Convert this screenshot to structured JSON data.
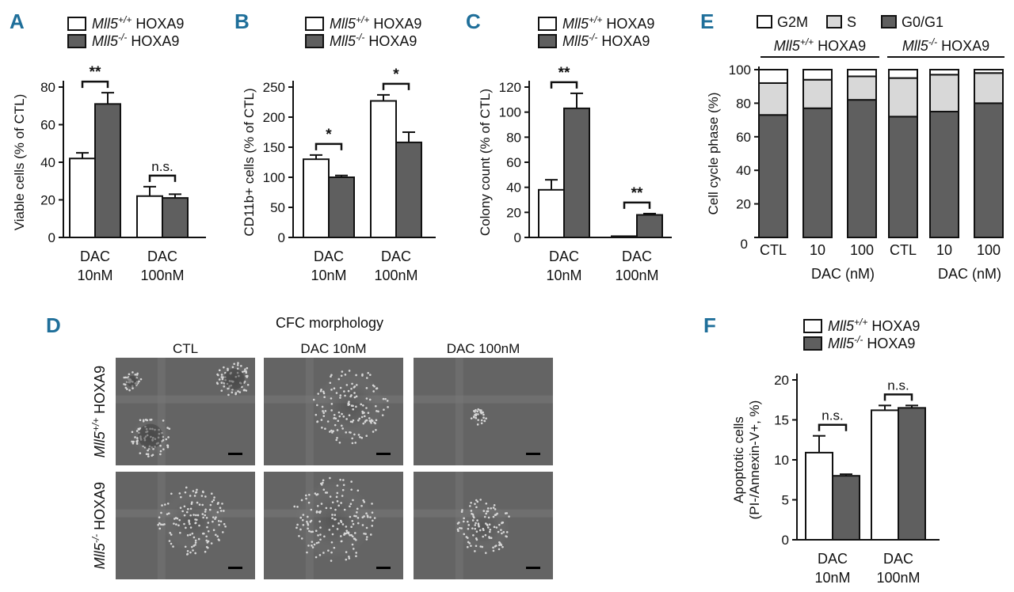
{
  "colors": {
    "panel_letter": "#1f6f9a",
    "wt_fill": "#ffffff",
    "ko_fill": "#5f5f5f",
    "s_fill": "#d8d8d8",
    "g01_fill": "#5f5f5f"
  },
  "legend": {
    "wt_label": "Mll5+/+ HOXA9",
    "ko_label": "Mll5-/- HOXA9"
  },
  "panels": {
    "A": {
      "letter": "A"
    },
    "B": {
      "letter": "B"
    },
    "C": {
      "letter": "C"
    },
    "D": {
      "letter": "D",
      "title": "CFC morphology",
      "columns": [
        "CTL",
        "DAC 10nM",
        "DAC 100nM"
      ],
      "rows": [
        "Mll5+/+ HOXA9",
        "Mll5-/- HOXA9"
      ]
    },
    "E": {
      "letter": "E"
    },
    "F": {
      "letter": "F"
    }
  },
  "chart_data": [
    {
      "id": "A",
      "type": "bar",
      "ylabel": "Viable cells (% of CTL)",
      "ylim": [
        0,
        80
      ],
      "yticks": [
        0,
        20,
        40,
        60,
        80
      ],
      "categories": [
        "DAC\n10nM",
        "DAC\n100nM"
      ],
      "series": [
        {
          "name": "Mll5+/+ HOXA9",
          "values": [
            42,
            22
          ],
          "errors": [
            3,
            5
          ]
        },
        {
          "name": "Mll5-/- HOXA9",
          "values": [
            71,
            21
          ],
          "errors": [
            6,
            2
          ]
        }
      ],
      "significance": [
        "**",
        "n.s."
      ]
    },
    {
      "id": "B",
      "type": "bar",
      "ylabel": "CD11b+ cells (% of CTL)",
      "ylim": [
        0,
        250
      ],
      "yticks": [
        0,
        50,
        100,
        150,
        200,
        250
      ],
      "categories": [
        "DAC\n10nM",
        "DAC\n100nM"
      ],
      "series": [
        {
          "name": "Mll5+/+ HOXA9",
          "values": [
            130,
            227
          ],
          "errors": [
            7,
            10
          ]
        },
        {
          "name": "Mll5-/- HOXA9",
          "values": [
            100,
            158
          ],
          "errors": [
            3,
            17
          ]
        }
      ],
      "significance": [
        "*",
        "*"
      ]
    },
    {
      "id": "C",
      "type": "bar",
      "ylabel": "Colony count (% of CTL)",
      "ylim": [
        0,
        120
      ],
      "yticks": [
        0,
        20,
        40,
        60,
        80,
        100,
        120
      ],
      "categories": [
        "DAC\n10nM",
        "DAC\n100nM"
      ],
      "series": [
        {
          "name": "Mll5+/+ HOXA9",
          "values": [
            38,
            1
          ],
          "errors": [
            8,
            0
          ]
        },
        {
          "name": "Mll5-/- HOXA9",
          "values": [
            103,
            18
          ],
          "errors": [
            12,
            1
          ]
        }
      ],
      "significance": [
        "**",
        "**"
      ]
    },
    {
      "id": "E",
      "type": "bar",
      "stacked": true,
      "ylabel": "Cell cycle phase (%)",
      "ylim": [
        0,
        100
      ],
      "yticks": [
        0,
        20,
        40,
        60,
        80,
        100
      ],
      "legend": [
        "G2M",
        "S",
        "G0/G1"
      ],
      "group_labels": [
        "Mll5+/+ HOXA9",
        "Mll5-/- HOXA9"
      ],
      "categories": [
        "CTL",
        "10",
        "100",
        "CTL",
        "10",
        "100"
      ],
      "axis_note": "DAC (nM)",
      "series": [
        {
          "name": "G0/G1",
          "values": [
            73,
            77,
            82,
            72,
            75,
            80
          ]
        },
        {
          "name": "S",
          "values": [
            19,
            17,
            14,
            23,
            22,
            18
          ]
        },
        {
          "name": "G2M",
          "values": [
            8,
            6,
            4,
            5,
            3,
            2
          ]
        }
      ]
    },
    {
      "id": "F",
      "type": "bar",
      "ylabel": "Apoptotic cells\n(PI-/Annexin-V+, %)",
      "ylim": [
        0,
        20
      ],
      "yticks": [
        0,
        5,
        10,
        15,
        20
      ],
      "categories": [
        "DAC\n10nM",
        "DAC\n100nM"
      ],
      "series": [
        {
          "name": "Mll5+/+ HOXA9",
          "values": [
            10.9,
            16.2
          ],
          "errors": [
            2.1,
            0.6
          ]
        },
        {
          "name": "Mll5-/- HOXA9",
          "values": [
            8.0,
            16.5
          ],
          "errors": [
            0.2,
            0.3
          ]
        }
      ],
      "significance": [
        "n.s.",
        "n.s."
      ]
    }
  ]
}
